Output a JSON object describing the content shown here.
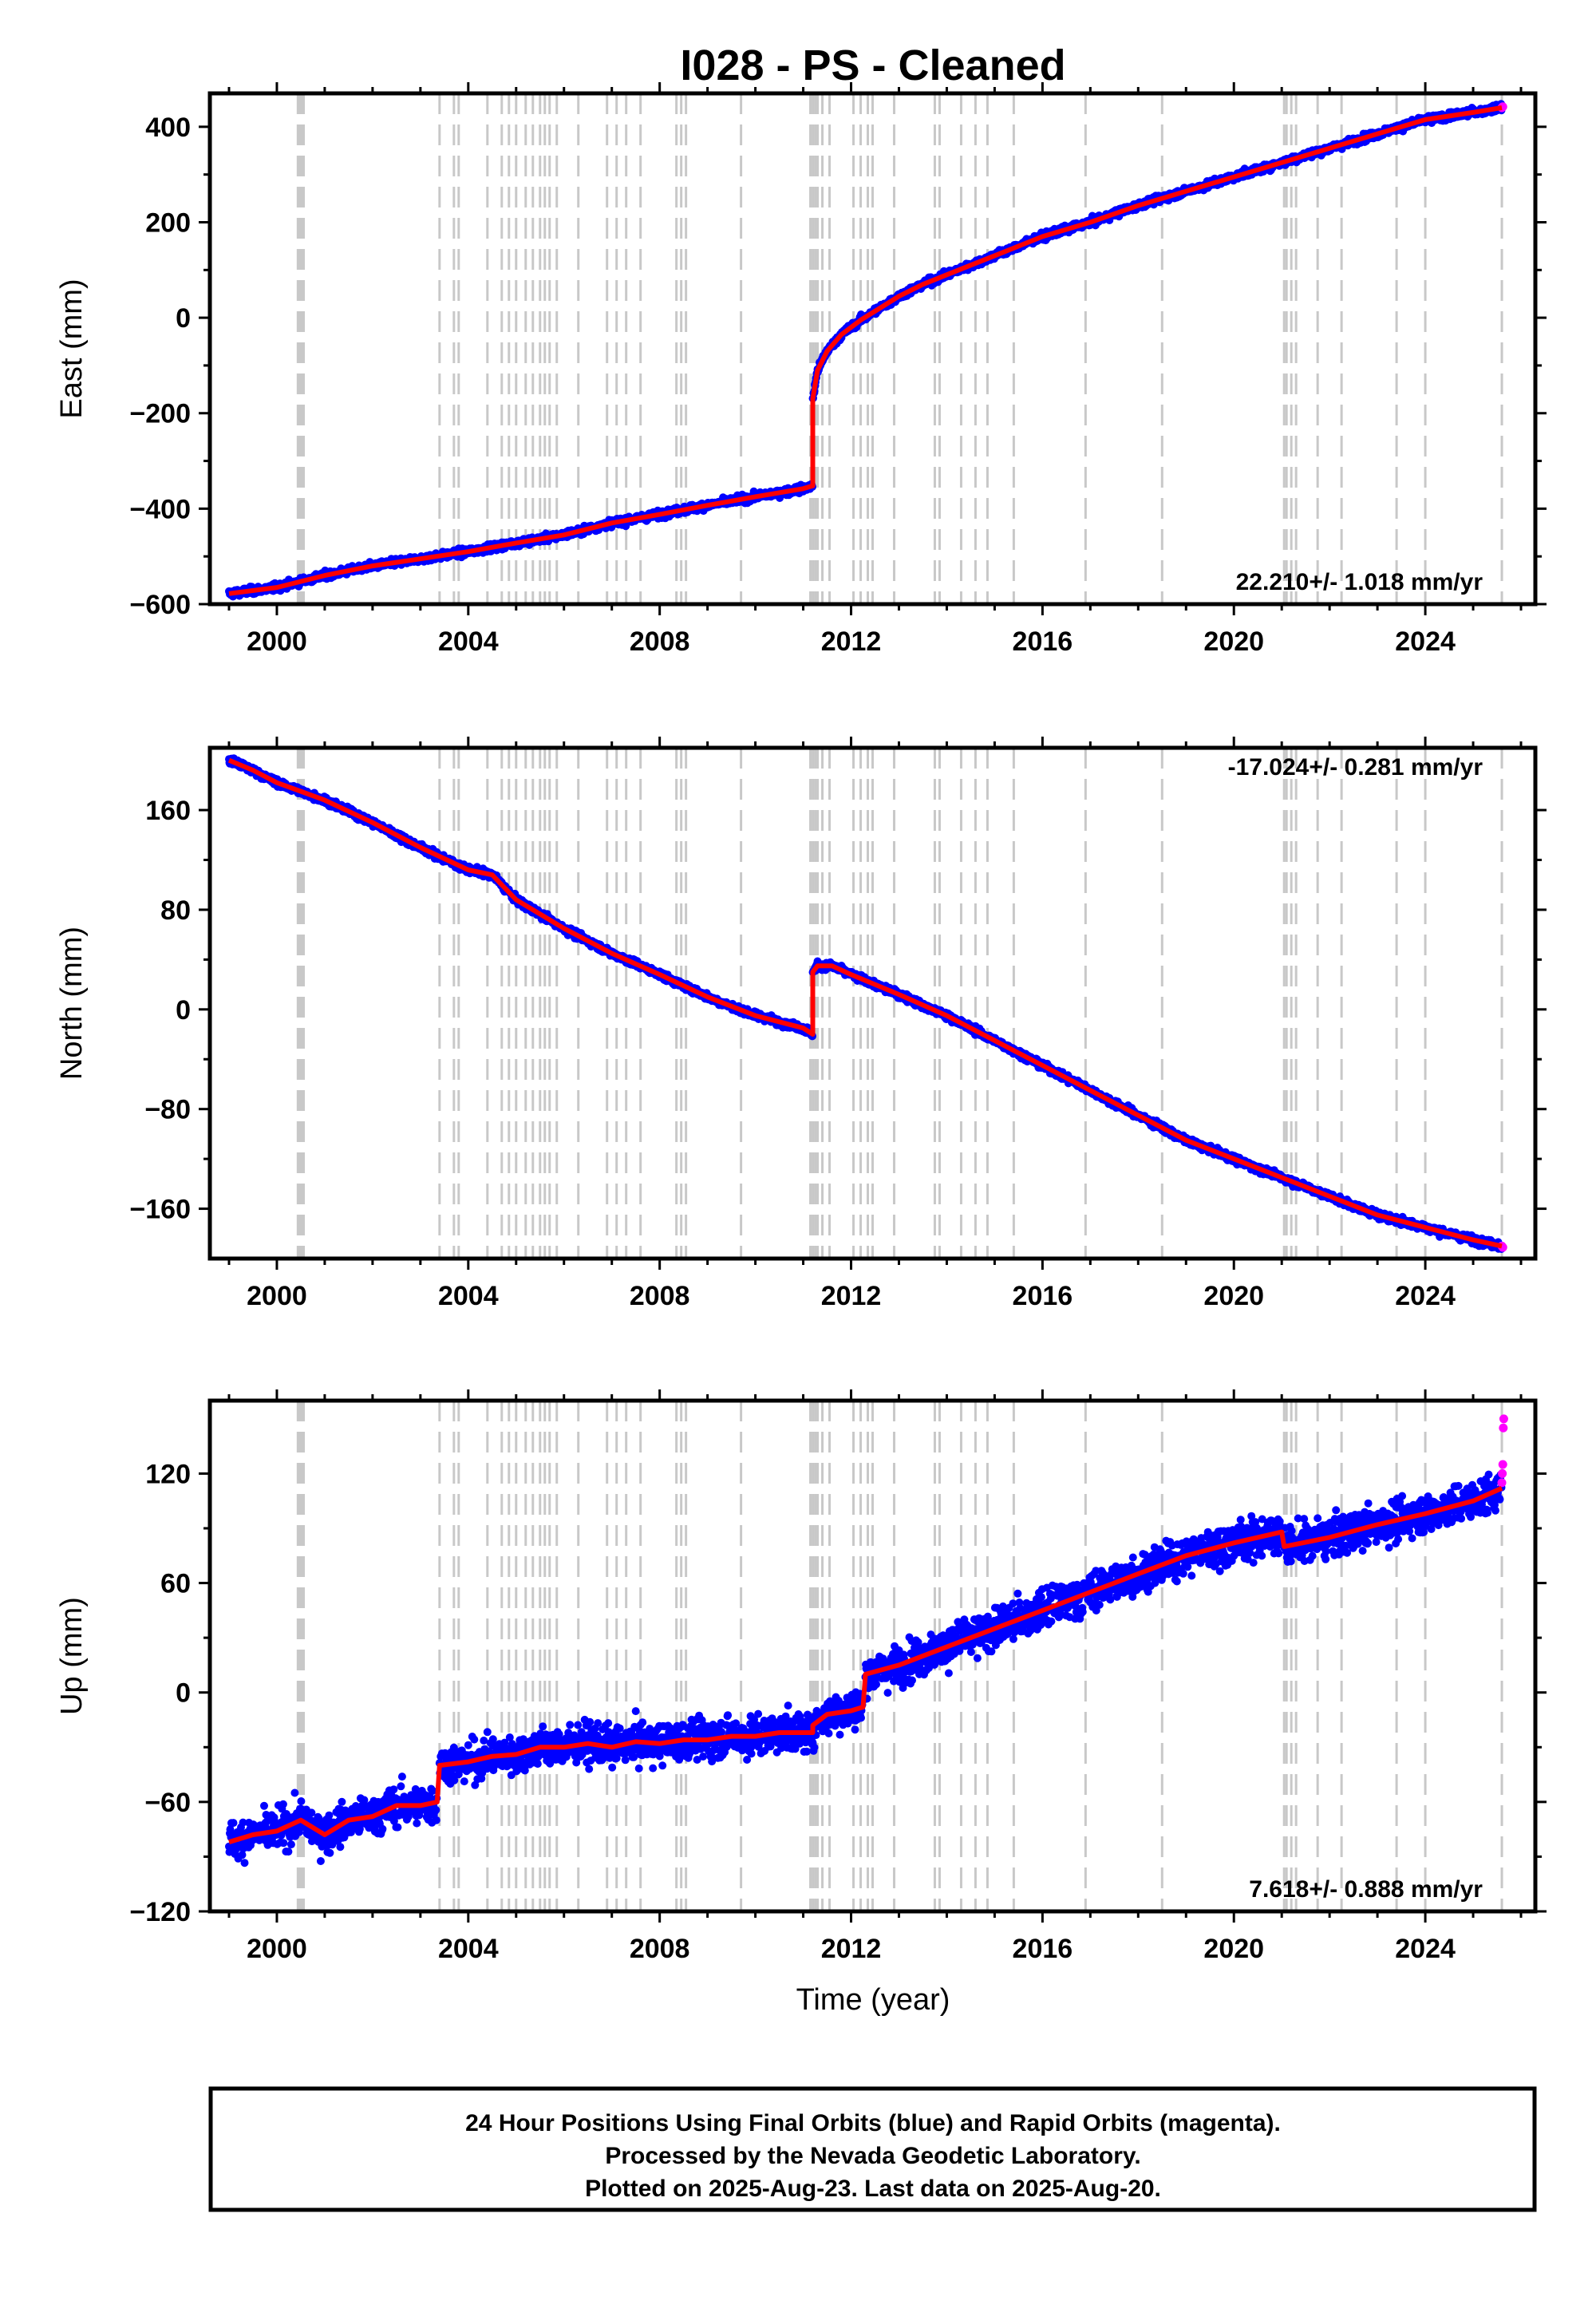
{
  "title": "I028  - PS - Cleaned",
  "colors": {
    "final_orbits": "#0000ff",
    "rapid_orbits": "#ff00ff",
    "model": "#ff0000",
    "equipment_change_lines": "#c8c8c8",
    "frame": "#000000"
  },
  "event_lines_years": [
    2000.44,
    2000.47,
    2000.5,
    2000.53,
    2000.56,
    2003.4,
    2003.7,
    2003.8,
    2004.4,
    2004.7,
    2004.85,
    2005.0,
    2005.2,
    2005.35,
    2005.5,
    2005.6,
    2005.7,
    2005.85,
    2006.3,
    2006.9,
    2007.1,
    2007.3,
    2007.6,
    2008.35,
    2008.45,
    2008.55,
    2009.7,
    2011.15,
    2011.2,
    2011.25,
    2011.3,
    2011.4,
    2011.55,
    2012.05,
    2012.2,
    2012.35,
    2012.45,
    2012.9,
    2013.75,
    2013.85,
    2014.3,
    2014.6,
    2014.85,
    2015.4,
    2016.9,
    2018.5,
    2021.05,
    2021.1,
    2021.2,
    2021.3,
    2021.75,
    2022.25,
    2023.4,
    2024.0,
    2025.6
  ],
  "chart_data": [
    {
      "type": "scatter",
      "name": "east",
      "ylabel": "East (mm)",
      "xlim": [
        1998.6,
        2026.3
      ],
      "ylim": [
        -600,
        470
      ],
      "x_ticks": [
        "2000",
        "2004",
        "2008",
        "2012",
        "2016",
        "2020",
        "2024"
      ],
      "y_ticks": [
        -600,
        -400,
        -200,
        0,
        200,
        400
      ],
      "y_tick_labels": [
        "−600",
        "−400",
        "−200",
        "0",
        "200",
        "400"
      ],
      "grid": false,
      "rate_label": "22.210+/- 1.018 mm/yr",
      "rate_position": "bottom-right",
      "series": [
        {
          "style": "final_orbits",
          "x": [
            1999.0,
            2000.0,
            2001.0,
            2002.0,
            2003.0,
            2004.0,
            2005.0,
            2006.0,
            2007.0,
            2008.0,
            2009.0,
            2010.0,
            2011.0,
            2011.2
          ],
          "y": [
            -578,
            -565,
            -540,
            -520,
            -505,
            -490,
            -472,
            -455,
            -430,
            -412,
            -393,
            -375,
            -358,
            -352
          ]
        },
        {
          "style": "final_orbits",
          "x": [
            2011.2,
            2011.3,
            2011.5,
            2011.8,
            2012.2,
            2012.6,
            2013.0,
            2013.5,
            2014.0,
            2014.5,
            2015.0,
            2015.5,
            2016.0,
            2017.0,
            2018.0,
            2019.0,
            2020.0,
            2021.0,
            2022.0,
            2023.0,
            2024.0,
            2025.0,
            2025.6
          ],
          "y": [
            -170,
            -110,
            -70,
            -35,
            -5,
            20,
            45,
            70,
            90,
            110,
            130,
            150,
            170,
            200,
            235,
            265,
            295,
            325,
            355,
            385,
            415,
            430,
            440
          ]
        },
        {
          "style": "rapid_orbits",
          "x": [
            2025.6,
            2025.62
          ],
          "y": [
            440,
            442
          ]
        },
        {
          "style": "model",
          "x": [
            1999.0,
            2000.0,
            2001.0,
            2002.0,
            2003.0,
            2004.0,
            2005.0,
            2006.0,
            2007.0,
            2008.0,
            2009.0,
            2010.0,
            2011.0,
            2011.2,
            2011.2,
            2011.3,
            2011.5,
            2011.8,
            2012.2,
            2012.6,
            2013.0,
            2013.5,
            2014.0,
            2014.5,
            2015.0,
            2015.5,
            2016.0,
            2017.0,
            2018.0,
            2019.0,
            2020.0,
            2021.0,
            2022.0,
            2023.0,
            2024.0,
            2025.0,
            2025.6
          ],
          "y": [
            -578,
            -565,
            -540,
            -520,
            -505,
            -490,
            -472,
            -455,
            -430,
            -412,
            -393,
            -375,
            -358,
            -352,
            -170,
            -110,
            -70,
            -35,
            -5,
            20,
            45,
            70,
            90,
            110,
            130,
            150,
            170,
            200,
            235,
            265,
            295,
            325,
            355,
            385,
            415,
            430,
            440
          ]
        }
      ]
    },
    {
      "type": "scatter",
      "name": "north",
      "ylabel": "North (mm)",
      "xlim": [
        1998.6,
        2026.3
      ],
      "ylim": [
        -200,
        210
      ],
      "x_ticks": [
        "2000",
        "2004",
        "2008",
        "2012",
        "2016",
        "2020",
        "2024"
      ],
      "y_ticks": [
        -160,
        -80,
        0,
        80,
        160
      ],
      "y_tick_labels": [
        "−160",
        "−80",
        "0",
        "80",
        "160"
      ],
      "grid": false,
      "rate_label": "-17.024+/- 0.281 mm/yr",
      "rate_position": "top-right",
      "series": [
        {
          "style": "final_orbits",
          "x": [
            1999.0,
            1999.5,
            2000.0,
            2000.5,
            2001.0,
            2002.0,
            2003.0,
            2004.0,
            2004.5,
            2005.0,
            2006.0,
            2007.0,
            2008.0,
            2009.0,
            2010.0,
            2011.0,
            2011.2
          ],
          "y": [
            200,
            192,
            182,
            175,
            168,
            150,
            130,
            112,
            108,
            88,
            65,
            45,
            28,
            10,
            -5,
            -15,
            -20
          ]
        },
        {
          "style": "final_orbits",
          "x": [
            2011.2,
            2011.3,
            2011.6,
            2012.0,
            2012.5,
            2013.0,
            2014.0,
            2015.0,
            2016.0,
            2017.0,
            2018.0,
            2019.0,
            2020.0,
            2021.0,
            2022.0,
            2023.0,
            2024.0,
            2025.0,
            2025.6
          ],
          "y": [
            30,
            35,
            35,
            28,
            20,
            12,
            -5,
            -25,
            -45,
            -65,
            -85,
            -105,
            -120,
            -135,
            -150,
            -165,
            -175,
            -185,
            -190
          ]
        },
        {
          "style": "rapid_orbits",
          "x": [
            2025.6,
            2025.62
          ],
          "y": [
            -190,
            -191
          ]
        },
        {
          "style": "model",
          "x": [
            1999.0,
            1999.5,
            2000.0,
            2000.5,
            2001.0,
            2002.0,
            2003.0,
            2004.0,
            2004.5,
            2005.0,
            2006.0,
            2007.0,
            2008.0,
            2009.0,
            2010.0,
            2011.0,
            2011.2,
            2011.2,
            2011.3,
            2011.6,
            2012.0,
            2012.5,
            2013.0,
            2014.0,
            2015.0,
            2016.0,
            2017.0,
            2018.0,
            2019.0,
            2020.0,
            2021.0,
            2022.0,
            2023.0,
            2024.0,
            2025.0,
            2025.6
          ],
          "y": [
            200,
            192,
            182,
            175,
            168,
            150,
            130,
            112,
            108,
            88,
            65,
            45,
            28,
            10,
            -5,
            -15,
            -20,
            30,
            35,
            35,
            28,
            20,
            12,
            -5,
            -25,
            -45,
            -65,
            -85,
            -105,
            -120,
            -135,
            -150,
            -165,
            -175,
            -185,
            -190
          ]
        }
      ]
    },
    {
      "type": "scatter",
      "name": "up",
      "ylabel": "Up (mm)",
      "xlim": [
        1998.6,
        2026.3
      ],
      "ylim": [
        -120,
        160
      ],
      "x_ticks": [
        "2000",
        "2004",
        "2008",
        "2012",
        "2016",
        "2020",
        "2024"
      ],
      "y_ticks": [
        -120,
        -60,
        0,
        60,
        120
      ],
      "y_tick_labels": [
        "−120",
        "−60",
        "0",
        "60",
        "120"
      ],
      "grid": false,
      "rate_label": "7.618+/- 0.888 mm/yr",
      "rate_position": "bottom-right",
      "scatter_spread_mm": 9,
      "series": [
        {
          "style": "final_orbits",
          "x": [
            1999.0,
            1999.5,
            2000.0,
            2000.5,
            2001.0,
            2001.5,
            2002.0,
            2002.5,
            2003.0,
            2003.35
          ],
          "y": [
            -82,
            -78,
            -76,
            -70,
            -78,
            -70,
            -68,
            -62,
            -62,
            -60
          ]
        },
        {
          "style": "final_orbits",
          "x": [
            2003.4,
            2004.0,
            2004.5,
            2005.0,
            2005.5,
            2006.0,
            2006.5,
            2007.0,
            2007.5,
            2008.0,
            2008.5,
            2009.0,
            2009.5,
            2010.0,
            2010.5,
            2011.0,
            2011.2
          ],
          "y": [
            -40,
            -38,
            -35,
            -34,
            -30,
            -30,
            -28,
            -30,
            -27,
            -28,
            -26,
            -26,
            -24,
            -24,
            -22,
            -22,
            -22
          ]
        },
        {
          "style": "final_orbits",
          "x": [
            2011.2,
            2011.5,
            2012.0,
            2012.25
          ],
          "y": [
            -18,
            -12,
            -10,
            -8
          ]
        },
        {
          "style": "final_orbits",
          "x": [
            2012.3,
            2013.0,
            2014.0,
            2015.0,
            2016.0,
            2017.0,
            2018.0,
            2019.0,
            2020.0,
            2021.0
          ],
          "y": [
            10,
            15,
            25,
            35,
            45,
            55,
            65,
            75,
            82,
            88
          ]
        },
        {
          "style": "final_orbits",
          "x": [
            2021.05,
            2022.0,
            2023.0,
            2024.0,
            2025.0,
            2025.6
          ],
          "y": [
            80,
            85,
            92,
            98,
            105,
            112
          ]
        },
        {
          "style": "rapid_orbits",
          "x": [
            2025.6,
            2025.61,
            2025.62,
            2025.63,
            2025.64
          ],
          "y": [
            115,
            120,
            125,
            145,
            150
          ]
        },
        {
          "style": "model",
          "x": [
            1999.0,
            1999.5,
            2000.0,
            2000.5,
            2001.0,
            2001.5,
            2002.0,
            2002.5,
            2003.0,
            2003.35,
            2003.4,
            2004.0,
            2004.5,
            2005.0,
            2005.5,
            2006.0,
            2006.5,
            2007.0,
            2007.5,
            2008.0,
            2008.5,
            2009.0,
            2009.5,
            2010.0,
            2010.5,
            2011.0,
            2011.2,
            2011.2,
            2011.5,
            2012.0,
            2012.25,
            2012.3,
            2013.0,
            2014.0,
            2015.0,
            2016.0,
            2017.0,
            2018.0,
            2019.0,
            2020.0,
            2021.0,
            2021.05,
            2022.0,
            2023.0,
            2024.0,
            2025.0,
            2025.6
          ],
          "y": [
            -82,
            -78,
            -76,
            -70,
            -78,
            -70,
            -68,
            -62,
            -62,
            -60,
            -40,
            -38,
            -35,
            -34,
            -30,
            -30,
            -28,
            -30,
            -27,
            -28,
            -26,
            -26,
            -24,
            -24,
            -22,
            -22,
            -22,
            -18,
            -12,
            -10,
            -8,
            10,
            15,
            25,
            35,
            45,
            55,
            65,
            75,
            82,
            88,
            80,
            85,
            92,
            98,
            105,
            112
          ]
        }
      ]
    }
  ],
  "xlabel": "Time (year)",
  "footer": {
    "line1": "24 Hour Positions Using Final Orbits (blue) and Rapid Orbits (magenta).",
    "line2": "Processed by the Nevada Geodetic Laboratory.",
    "line3": "Plotted on 2025-Aug-23. Last data on 2025-Aug-20."
  }
}
